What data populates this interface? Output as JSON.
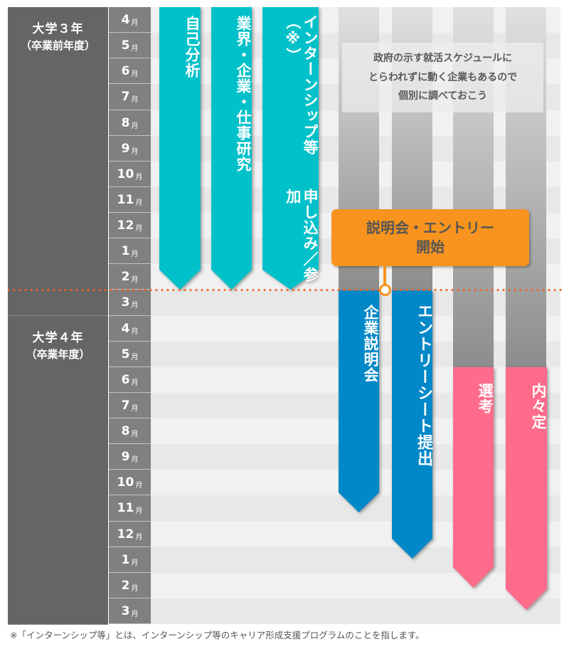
{
  "years": [
    {
      "title": "大学３年",
      "subtitle": "（卒業前年度）"
    },
    {
      "title": "大学４年",
      "subtitle": "（卒業年度）"
    }
  ],
  "month_unit": "月",
  "months": [
    "4",
    "5",
    "6",
    "7",
    "8",
    "9",
    "10",
    "11",
    "12",
    "1",
    "2",
    "3",
    "4",
    "5",
    "6",
    "7",
    "8",
    "9",
    "10",
    "11",
    "12",
    "1",
    "2",
    "3"
  ],
  "bars": [
    {
      "label": "自己分析",
      "color": "#00c1c9"
    },
    {
      "label": "業界・企業・仕事研究",
      "color": "#00c1c9"
    },
    {
      "label": "インターンシップ等申し込み／参加",
      "line1": "インターンシップ等（※）",
      "line2": "申し込み／参加",
      "color": "#00c1c9"
    },
    {
      "label": "企業説明会",
      "color": "#0088c8"
    },
    {
      "label": "エントリーシート提出",
      "color": "#0088c8"
    },
    {
      "label": "選考",
      "color": "#ff6b8a"
    },
    {
      "label": "内々定",
      "color": "#ff6b8a"
    }
  ],
  "note": {
    "lines": [
      "政府の示す就活スケジュールに",
      "とらわれずに動く企業もあるので",
      "個別に調べておこう"
    ]
  },
  "callout": {
    "line1": "説明会・エントリー",
    "line2": "開始",
    "color": "#f7931e"
  },
  "footnote": "※「インターンシップ等」とは、インターンシップ等のキャリア形成支援プログラムのことを指します。"
}
